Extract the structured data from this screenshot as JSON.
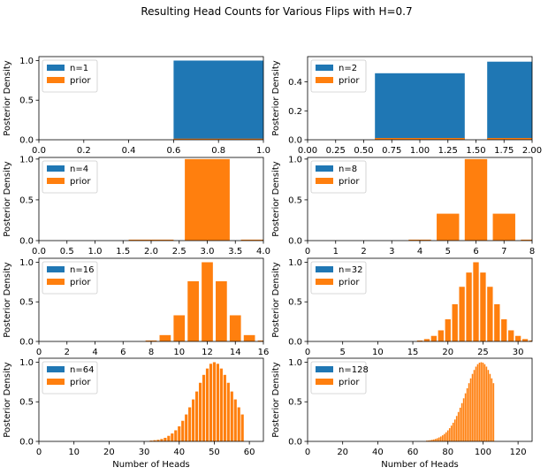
{
  "figure": {
    "title": "Resulting Head Counts for Various Flips with H=0.7"
  },
  "chart_data": [
    {
      "type": "bar",
      "n": 1,
      "xlabel": "",
      "ylabel": "Posterior Density",
      "xlim": [
        0,
        1
      ],
      "ylim": [
        0,
        1.05
      ],
      "xticks": [
        "0.0",
        "0.2",
        "0.4",
        "0.6",
        "0.8",
        "1.0"
      ],
      "yticks": [
        "0.0",
        "0.5",
        "1.0"
      ],
      "bar_width": 0.8,
      "series": [
        {
          "name": "n=1",
          "color": "#1f77b4",
          "x": [
            0,
            1
          ],
          "values": [
            0.0,
            1.0
          ]
        },
        {
          "name": "prior",
          "color": "#ff7f0e",
          "x": [
            0,
            1
          ],
          "values": [
            0.0,
            0.014
          ]
        }
      ]
    },
    {
      "type": "bar",
      "n": 2,
      "xlabel": "",
      "ylabel": "Posterior Density",
      "xlim": [
        0,
        2
      ],
      "ylim": [
        0,
        0.575
      ],
      "xticks": [
        "0.00",
        "0.25",
        "0.50",
        "0.75",
        "1.00",
        "1.25",
        "1.50",
        "1.75",
        "2.00"
      ],
      "yticks": [
        "0.0",
        "0.2",
        "0.4"
      ],
      "bar_width": 0.8,
      "series": [
        {
          "name": "n=2",
          "color": "#1f77b4",
          "x": [
            0,
            1,
            2
          ],
          "values": [
            0.0,
            0.46,
            0.54
          ]
        },
        {
          "name": "prior",
          "color": "#ff7f0e",
          "x": [
            0,
            1,
            2
          ],
          "values": [
            0.0,
            0.012,
            0.012
          ]
        }
      ]
    },
    {
      "type": "bar",
      "n": 4,
      "xlabel": "",
      "ylabel": "Posterior Density",
      "xlim": [
        0,
        4
      ],
      "ylim": [
        0,
        1.02
      ],
      "xticks": [
        "0.0",
        "0.5",
        "1.0",
        "1.5",
        "2.0",
        "2.5",
        "3.0",
        "3.5",
        "4.0"
      ],
      "yticks": [
        "0.0",
        "0.5",
        "1.0"
      ],
      "bar_width": 0.8,
      "series": [
        {
          "name": "n=4",
          "color": "#1f77b4",
          "x": [
            0,
            1,
            2,
            3,
            4
          ],
          "values": [
            0,
            0,
            0,
            0,
            0
          ]
        },
        {
          "name": "prior",
          "color": "#ff7f0e",
          "x": [
            0,
            1,
            2,
            3,
            4
          ],
          "values": [
            0.0,
            0.0,
            0.012,
            1.0,
            0.012
          ]
        }
      ]
    },
    {
      "type": "bar",
      "n": 8,
      "xlabel": "",
      "ylabel": "Posterior Density",
      "xlim": [
        0,
        8
      ],
      "ylim": [
        0,
        1.02
      ],
      "xticks": [
        "0",
        "1",
        "2",
        "3",
        "4",
        "5",
        "6",
        "7",
        "8"
      ],
      "yticks": [
        "0.0",
        "0.5",
        "1.0"
      ],
      "bar_width": 0.8,
      "series": [
        {
          "name": "n=8",
          "color": "#1f77b4",
          "x": [
            0,
            1,
            2,
            3,
            4,
            5,
            6,
            7,
            8
          ],
          "values": [
            0,
            0,
            0,
            0,
            0,
            0,
            0,
            0,
            0
          ]
        },
        {
          "name": "prior",
          "color": "#ff7f0e",
          "x": [
            0,
            1,
            2,
            3,
            4,
            5,
            6,
            7,
            8
          ],
          "values": [
            0,
            0,
            0,
            0,
            0.012,
            0.33,
            1.0,
            0.33,
            0.012
          ]
        }
      ]
    },
    {
      "type": "bar",
      "n": 16,
      "xlabel": "",
      "ylabel": "Posterior Density",
      "xlim": [
        0,
        16
      ],
      "ylim": [
        0,
        1.05
      ],
      "xticks": [
        "0",
        "2",
        "4",
        "6",
        "8",
        "10",
        "12",
        "14",
        "16"
      ],
      "yticks": [
        "0.0",
        "0.5",
        "1.0"
      ],
      "bar_width": 0.8,
      "series": [
        {
          "name": "n=16",
          "color": "#1f77b4",
          "x": [
            0,
            1,
            2,
            3,
            4,
            5,
            6,
            7,
            8,
            9,
            10,
            11,
            12,
            13,
            14,
            15,
            16
          ],
          "values": [
            0,
            0,
            0,
            0,
            0,
            0,
            0,
            0,
            0,
            0,
            0,
            0,
            0,
            0,
            0,
            0,
            0
          ]
        },
        {
          "name": "prior",
          "color": "#ff7f0e",
          "x": [
            0,
            1,
            2,
            3,
            4,
            5,
            6,
            7,
            8,
            9,
            10,
            11,
            12,
            13,
            14,
            15,
            16
          ],
          "values": [
            0,
            0,
            0,
            0,
            0,
            0,
            0,
            0,
            0.012,
            0.08,
            0.33,
            0.76,
            1.0,
            0.76,
            0.33,
            0.08,
            0.012
          ]
        }
      ]
    },
    {
      "type": "bar",
      "n": 32,
      "xlabel": "",
      "ylabel": "Posterior Density",
      "xlim": [
        0,
        32
      ],
      "ylim": [
        0,
        1.05
      ],
      "xticks": [
        "0",
        "5",
        "10",
        "15",
        "20",
        "25",
        "30"
      ],
      "yticks": [
        "0.0",
        "0.5",
        "1.0"
      ],
      "bar_width": 0.8,
      "series": [
        {
          "name": "n=32",
          "color": "#1f77b4",
          "x": [
            0,
            1,
            2,
            3,
            4,
            5,
            6,
            7,
            8,
            9,
            10,
            11,
            12,
            13,
            14,
            15,
            16,
            17,
            18,
            19,
            20,
            21,
            22,
            23,
            24,
            25,
            26,
            27,
            28,
            29,
            30,
            31,
            32
          ],
          "values": [
            0,
            0,
            0,
            0,
            0,
            0,
            0,
            0,
            0,
            0,
            0,
            0,
            0,
            0,
            0,
            0,
            0,
            0,
            0,
            0,
            0,
            0,
            0,
            0,
            0,
            0,
            0,
            0,
            0,
            0,
            0,
            0,
            0
          ]
        },
        {
          "name": "prior",
          "color": "#ff7f0e",
          "x": [
            0,
            1,
            2,
            3,
            4,
            5,
            6,
            7,
            8,
            9,
            10,
            11,
            12,
            13,
            14,
            15,
            16,
            17,
            18,
            19,
            20,
            21,
            22,
            23,
            24,
            25,
            26,
            27,
            28,
            29,
            30,
            31,
            32
          ],
          "values": [
            0,
            0,
            0,
            0,
            0,
            0,
            0,
            0,
            0,
            0,
            0,
            0,
            0,
            0,
            0,
            0,
            0.012,
            0.03,
            0.07,
            0.14,
            0.28,
            0.47,
            0.69,
            0.87,
            1.0,
            0.87,
            0.69,
            0.47,
            0.28,
            0.14,
            0.07,
            0.03,
            0.012
          ]
        }
      ]
    },
    {
      "type": "bar",
      "n": 64,
      "xlabel": "Number of Heads",
      "ylabel": "Posterior Density",
      "xlim": [
        0,
        64
      ],
      "ylim": [
        0,
        1.05
      ],
      "xticks": [
        "0",
        "10",
        "20",
        "30",
        "40",
        "50",
        "60"
      ],
      "yticks": [
        "0.0",
        "0.5",
        "1.0"
      ],
      "bar_width": 0.8,
      "series": [
        {
          "name": "n=64",
          "color": "#1f77b4",
          "x_start": 0,
          "values": [
            0,
            0,
            0,
            0,
            0,
            0,
            0,
            0,
            0,
            0,
            0,
            0,
            0,
            0,
            0,
            0,
            0,
            0,
            0,
            0,
            0,
            0,
            0,
            0,
            0,
            0,
            0,
            0,
            0,
            0,
            0,
            0,
            0,
            0,
            0,
            0,
            0,
            0,
            0,
            0,
            0,
            0,
            0,
            0,
            0,
            0,
            0,
            0,
            0,
            0,
            0,
            0,
            0,
            0,
            0,
            0,
            0,
            0,
            0,
            0,
            0,
            0,
            0,
            0,
            0
          ]
        },
        {
          "name": "prior",
          "color": "#ff7f0e",
          "x_start": 0,
          "values": [
            0,
            0,
            0,
            0,
            0,
            0,
            0,
            0,
            0,
            0,
            0,
            0,
            0,
            0,
            0,
            0,
            0,
            0,
            0,
            0,
            0,
            0,
            0,
            0,
            0,
            0,
            0,
            0,
            0,
            0,
            0,
            0,
            0.01,
            0.015,
            0.02,
            0.03,
            0.045,
            0.07,
            0.1,
            0.14,
            0.19,
            0.26,
            0.34,
            0.43,
            0.53,
            0.63,
            0.74,
            0.84,
            0.92,
            0.98,
            1.0,
            0.98,
            0.92,
            0.84,
            0.74,
            0.63,
            0.53,
            0.43,
            0.34,
            0,
            0,
            0,
            0,
            0,
            0
          ]
        }
      ]
    },
    {
      "type": "bar",
      "n": 128,
      "xlabel": "Number of Heads",
      "ylabel": "Posterior Density",
      "xlim": [
        0,
        128
      ],
      "ylim": [
        0,
        1.05
      ],
      "xticks": [
        "0",
        "20",
        "40",
        "60",
        "80",
        "100",
        "120"
      ],
      "yticks": [
        "0.0",
        "0.5",
        "1.0"
      ],
      "bar_width": 0.8,
      "series": [
        {
          "name": "n=128",
          "color": "#1f77b4",
          "x_start": 0,
          "values": []
        },
        {
          "name": "prior",
          "color": "#ff7f0e",
          "x_start": 68,
          "values": [
            0.01,
            0.012,
            0.015,
            0.02,
            0.025,
            0.032,
            0.04,
            0.05,
            0.062,
            0.077,
            0.094,
            0.115,
            0.139,
            0.167,
            0.199,
            0.235,
            0.276,
            0.321,
            0.371,
            0.425,
            0.483,
            0.544,
            0.607,
            0.671,
            0.735,
            0.796,
            0.852,
            0.902,
            0.944,
            0.975,
            0.994,
            1.0,
            0.994,
            0.975,
            0.944,
            0.902,
            0.852,
            0.796,
            0.735
          ]
        }
      ]
    }
  ]
}
